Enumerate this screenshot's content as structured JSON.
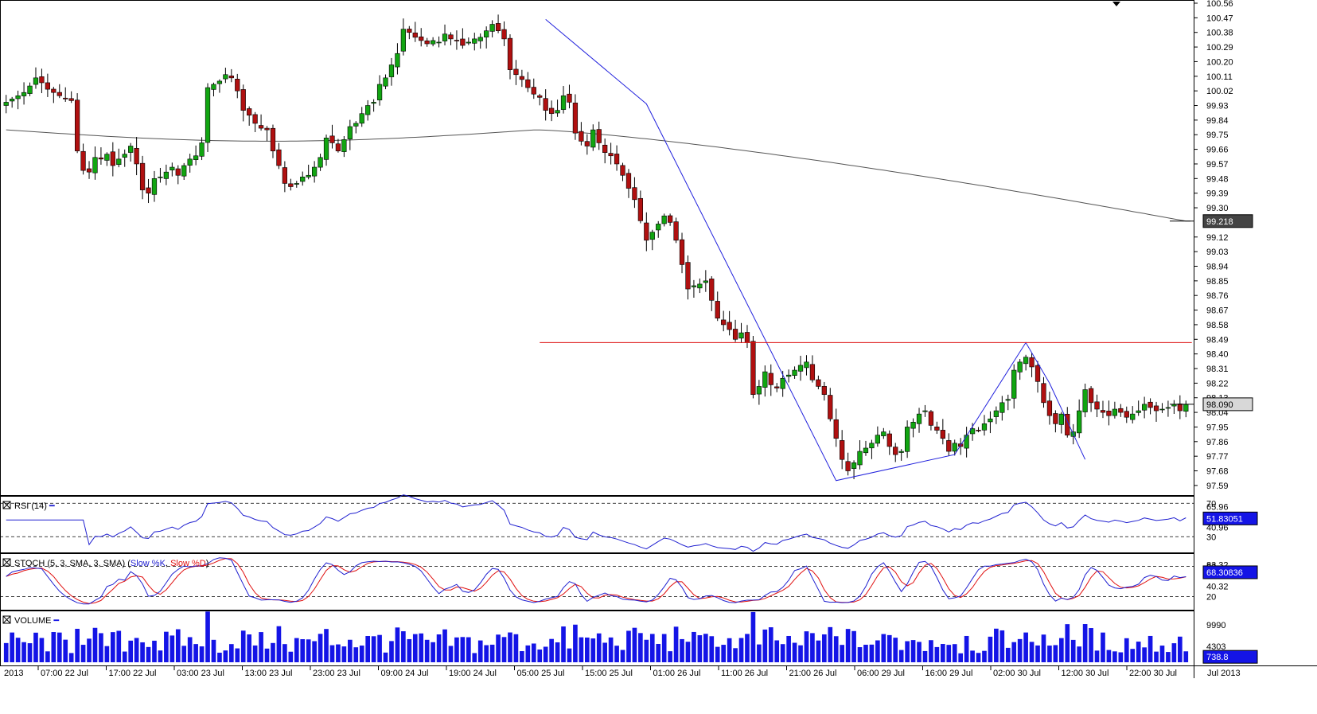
{
  "price_axis": {
    "ticks": [
      "100.56",
      "100.47",
      "100.38",
      "100.29",
      "100.20",
      "100.11",
      "100.02",
      "99.93",
      "99.84",
      "99.75",
      "99.66",
      "99.57",
      "99.48",
      "99.39",
      "99.30",
      "99.12",
      "99.03",
      "98.94",
      "98.85",
      "98.76",
      "98.67",
      "98.58",
      "98.49",
      "98.40",
      "98.31",
      "98.22",
      "98.13",
      "98.04",
      "97.95",
      "97.86",
      "97.77",
      "97.68",
      "97.59"
    ],
    "range": [
      97.56,
      100.56
    ]
  },
  "time_axis": {
    "labels": [
      "2013",
      "07:00 22 Jul",
      "17:00 22 Jul",
      "03:00 23 Jul",
      "13:00 23 Jul",
      "23:00 23 Jul",
      "09:00 24 Jul",
      "19:00 24 Jul",
      "05:00 25 Jul",
      "15:00 25 Jul",
      "01:00 26 Jul",
      "11:00 26 Jul",
      "21:00 26 Jul",
      "06:00 29 Jul",
      "16:00 29 Jul",
      "02:00 30 Jul",
      "12:00 30 Jul",
      "22:00 30 Jul",
      "Jul 2013"
    ]
  },
  "markers": {
    "ma_value": "99.218",
    "current_price": "98.090",
    "resistance_level": 98.47
  },
  "rsi": {
    "title": "RSI (14)",
    "ticks": [
      "70",
      "65.96",
      "40.96",
      "30"
    ],
    "current": "51.83051",
    "range": [
      15,
      75
    ]
  },
  "stoch": {
    "title": "STOCH (5, 3, SMA, 3, SMA)",
    "k_label": "Slow %K",
    "d_label": "Slow %D",
    "open_paren": "(",
    "comma": ",",
    "close_paren": ")",
    "ticks": [
      "83.32",
      "80",
      "40.32",
      "20"
    ],
    "current": "68.30836",
    "range": [
      0,
      100
    ]
  },
  "volume": {
    "title": "VOLUME",
    "ticks": [
      "9990",
      "4303"
    ],
    "current": "738.8",
    "range": [
      0,
      13000
    ]
  },
  "colors": {
    "bull": "#11a511",
    "bear": "#b01010",
    "ma": "#555555",
    "zigzag": "#2222dd",
    "resistance": "#dd1111",
    "rsi": "#2020d0",
    "stoch_k": "#2020d0",
    "stoch_d": "#e01010",
    "volume": "#1414e6"
  },
  "chart_data": {
    "type": "candlestick",
    "interval": "1 hour",
    "candles_close": [
      99.95,
      99.97,
      99.99,
      100.01,
      100.05,
      100.1,
      100.07,
      100.03,
      100.01,
      99.99,
      99.97,
      99.96,
      99.65,
      99.53,
      99.52,
      99.61,
      99.6,
      99.63,
      99.56,
      99.6,
      99.63,
      99.68,
      99.57,
      99.41,
      99.39,
      99.48,
      99.49,
      99.52,
      99.55,
      99.5,
      99.56,
      99.6,
      99.62,
      99.7,
      100.04,
      100.06,
      100.08,
      100.12,
      100.1,
      100.02,
      99.9,
      99.87,
      99.82,
      99.79,
      99.78,
      99.65,
      99.56,
      99.45,
      99.43,
      99.45,
      99.49,
      99.5,
      99.55,
      99.61,
      99.73,
      99.7,
      99.65,
      99.72,
      99.8,
      99.82,
      99.88,
      99.93,
      99.95,
      100.06,
      100.1,
      100.18,
      100.25,
      100.4,
      100.38,
      100.35,
      100.33,
      100.31,
      100.33,
      100.32,
      100.37,
      100.34,
      100.33,
      100.3,
      100.32,
      100.34,
      100.35,
      100.39,
      100.43,
      100.39,
      100.34,
      100.15,
      100.12,
      100.09,
      100.04,
      100.0,
      99.98,
      99.9,
      99.88,
      99.9,
      99.99,
      99.95,
      99.76,
      99.71,
      99.68,
      99.78,
      99.7,
      99.64,
      99.62,
      99.57,
      99.5,
      99.42,
      99.35,
      99.22,
      99.1,
      99.15,
      99.2,
      99.25,
      99.21,
      99.1,
      98.95,
      98.8,
      98.82,
      98.83,
      98.85,
      98.73,
      98.62,
      98.58,
      98.55,
      98.49,
      98.53,
      98.47,
      98.15,
      98.2,
      98.29,
      98.21,
      98.19,
      98.25,
      98.27,
      98.3,
      98.33,
      98.35,
      98.24,
      98.2,
      98.15,
      98.0,
      97.88,
      97.75,
      97.68,
      97.73,
      97.8,
      97.82,
      97.85,
      97.9,
      97.92,
      97.83,
      97.78,
      97.8,
      97.95,
      97.98,
      98.03,
      98.05,
      97.96,
      97.93,
      97.88,
      97.8,
      97.85,
      97.83,
      97.9,
      97.94,
      97.93,
      97.97,
      98.0,
      98.05,
      98.1,
      98.12,
      98.3,
      98.35,
      98.38,
      98.32,
      98.23,
      98.1,
      98.02,
      97.97,
      98.03,
      97.9,
      97.92,
      98.05,
      98.18,
      98.1,
      98.06,
      98.04,
      98.02,
      98.06,
      98.04,
      98.01,
      98.03,
      98.05,
      98.09,
      98.07,
      98.05,
      98.06,
      98.07,
      98.09,
      98.05,
      98.09
    ]
  }
}
